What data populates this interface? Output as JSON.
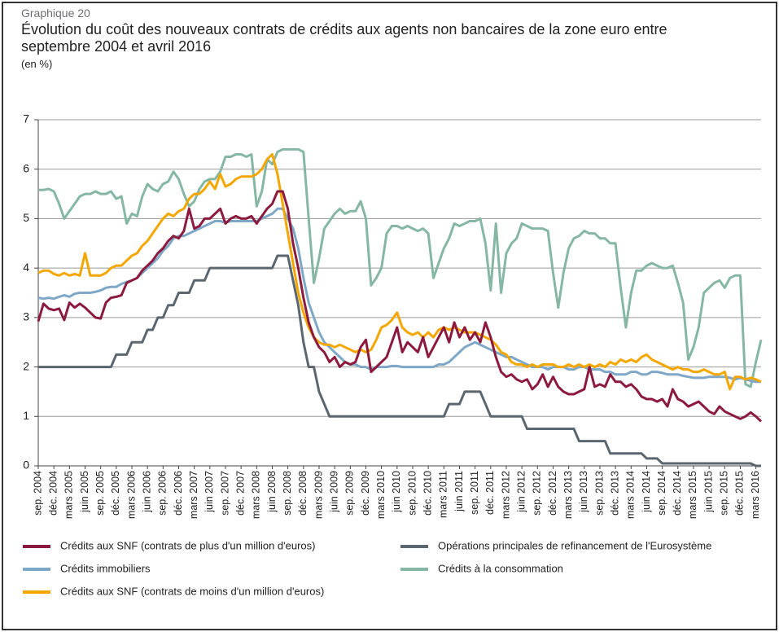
{
  "chart_data": {
    "type": "line",
    "kicker": "Graphique 20",
    "title": "Évolution du coût des nouveaux contrats de crédits aux agents non bancaires de la zone euro entre septembre 2004 et avril 2016",
    "y_label": "(en %)",
    "ylim": [
      0,
      7
    ],
    "yticks": [
      0,
      1,
      2,
      3,
      4,
      5,
      6,
      7
    ],
    "grid": true,
    "categories": [
      "sep. 2004",
      null,
      null,
      "déc. 2004",
      null,
      null,
      "mars 2005",
      null,
      null,
      "juin 2005",
      null,
      null,
      "sep. 2005",
      null,
      null,
      "déc. 2005",
      null,
      null,
      "mars 2006",
      null,
      null,
      "juin 2006",
      null,
      null,
      "sep. 2006",
      null,
      null,
      "déc. 2006",
      null,
      null,
      "mars 2007",
      null,
      null,
      "juin 2007",
      null,
      null,
      "sep. 2007",
      null,
      null,
      "déc. 2007",
      null,
      null,
      "mars 2008",
      null,
      null,
      "juin 2008",
      null,
      null,
      "sep. 2008",
      null,
      null,
      "déc. 2008",
      null,
      null,
      "mars 2009",
      null,
      null,
      "juin 2009",
      null,
      null,
      "sep. 2009",
      null,
      null,
      "déc. 2009",
      null,
      null,
      "mars 2010",
      null,
      null,
      "juin 2010",
      null,
      null,
      "sep. 2010",
      null,
      null,
      "déc. 2010",
      null,
      null,
      "mars 2011",
      null,
      null,
      "juin 2011",
      null,
      null,
      "sep. 2011",
      null,
      null,
      "déc. 2011",
      null,
      null,
      "mars 2012",
      null,
      null,
      "juin 2012",
      null,
      null,
      "sep. 2012",
      null,
      null,
      "déc. 2012",
      null,
      null,
      "mars 2013",
      null,
      null,
      "juin 2013",
      null,
      null,
      "sep. 2013",
      null,
      null,
      "déc. 2013",
      null,
      null,
      "mars 2014",
      null,
      null,
      "juin 2014",
      null,
      null,
      "sep. 2014",
      null,
      null,
      "déc. 2014",
      null,
      null,
      "mars 2015",
      null,
      null,
      "juin 2015",
      null,
      null,
      "sep. 2015",
      null,
      null,
      "déc. 2015",
      null,
      null,
      "mars 2016",
      null
    ],
    "series": [
      {
        "name": "Crédits aux SNF (contrats de plus d'un million d'euros)",
        "color": "#8b1a3e",
        "values": [
          2.92,
          3.28,
          3.18,
          3.15,
          3.18,
          2.95,
          3.3,
          3.2,
          3.28,
          3.2,
          3.1,
          3.0,
          2.98,
          3.3,
          3.4,
          3.42,
          3.45,
          3.7,
          3.75,
          3.8,
          3.95,
          4.05,
          4.15,
          4.3,
          4.4,
          4.55,
          4.65,
          4.6,
          4.75,
          5.2,
          4.8,
          4.85,
          5.0,
          5.0,
          5.1,
          5.2,
          4.9,
          5.0,
          5.05,
          5.0,
          5.0,
          5.05,
          4.9,
          5.05,
          5.2,
          5.3,
          5.55,
          5.55,
          5.2,
          4.5,
          4.0,
          3.4,
          2.9,
          2.6,
          2.4,
          2.3,
          2.1,
          2.2,
          2.0,
          2.1,
          2.05,
          2.1,
          2.4,
          2.55,
          1.9,
          2.0,
          2.1,
          2.2,
          2.5,
          2.8,
          2.3,
          2.5,
          2.4,
          2.3,
          2.6,
          2.2,
          2.4,
          2.6,
          2.8,
          2.5,
          2.9,
          2.6,
          2.8,
          2.55,
          2.7,
          2.5,
          2.9,
          2.6,
          2.2,
          1.9,
          1.8,
          1.85,
          1.75,
          1.7,
          1.75,
          1.55,
          1.65,
          1.85,
          1.6,
          1.8,
          1.6,
          1.5,
          1.45,
          1.45,
          1.5,
          1.55,
          2.0,
          1.6,
          1.65,
          1.6,
          1.85,
          1.7,
          1.7,
          1.6,
          1.65,
          1.55,
          1.4,
          1.35,
          1.35,
          1.3,
          1.35,
          1.2,
          1.55,
          1.35,
          1.3,
          1.2,
          1.25,
          1.3,
          1.2,
          1.1,
          1.05,
          1.2,
          1.1,
          1.05,
          1.0,
          0.95,
          1.0,
          1.08,
          1.0,
          0.9
        ]
      },
      {
        "name": "Opérations principales de refinancement de l'Eurosystème",
        "color": "#5b666f",
        "values": [
          2,
          2,
          2,
          2,
          2,
          2,
          2,
          2,
          2,
          2,
          2,
          2,
          2,
          2,
          2,
          2.25,
          2.25,
          2.25,
          2.5,
          2.5,
          2.5,
          2.75,
          2.75,
          3,
          3,
          3.25,
          3.25,
          3.5,
          3.5,
          3.5,
          3.75,
          3.75,
          3.75,
          4,
          4,
          4,
          4,
          4,
          4,
          4,
          4,
          4,
          4,
          4,
          4,
          4,
          4.25,
          4.25,
          4.25,
          3.75,
          3.25,
          2.5,
          2,
          2,
          1.5,
          1.25,
          1,
          1,
          1,
          1,
          1,
          1,
          1,
          1,
          1,
          1,
          1,
          1,
          1,
          1,
          1,
          1,
          1,
          1,
          1,
          1,
          1,
          1,
          1,
          1.25,
          1.25,
          1.25,
          1.5,
          1.5,
          1.5,
          1.5,
          1.25,
          1,
          1,
          1,
          1,
          1,
          1,
          1,
          0.75,
          0.75,
          0.75,
          0.75,
          0.75,
          0.75,
          0.75,
          0.75,
          0.75,
          0.75,
          0.5,
          0.5,
          0.5,
          0.5,
          0.5,
          0.5,
          0.25,
          0.25,
          0.25,
          0.25,
          0.25,
          0.25,
          0.25,
          0.15,
          0.15,
          0.15,
          0.05,
          0.05,
          0.05,
          0.05,
          0.05,
          0.05,
          0.05,
          0.05,
          0.05,
          0.05,
          0.05,
          0.05,
          0.05,
          0.05,
          0.05,
          0.05,
          0.05,
          0.05,
          0,
          0
        ]
      },
      {
        "name": "Crédits immobiliers",
        "color": "#7fa8c8",
        "values": [
          3.4,
          3.38,
          3.4,
          3.38,
          3.42,
          3.45,
          3.42,
          3.48,
          3.5,
          3.5,
          3.5,
          3.52,
          3.55,
          3.6,
          3.62,
          3.62,
          3.68,
          3.72,
          3.75,
          3.8,
          3.9,
          4.0,
          4.1,
          4.2,
          4.35,
          4.45,
          4.6,
          4.65,
          4.65,
          4.7,
          4.75,
          4.8,
          4.85,
          4.9,
          4.95,
          4.95,
          4.92,
          4.95,
          4.95,
          4.95,
          4.95,
          4.95,
          4.95,
          5.0,
          5.05,
          5.1,
          5.2,
          5.2,
          5.0,
          4.8,
          4.4,
          3.8,
          3.3,
          3.0,
          2.7,
          2.5,
          2.4,
          2.3,
          2.2,
          2.1,
          2.05,
          2.05,
          2.0,
          2.0,
          1.95,
          2.0,
          2.0,
          2.0,
          2.02,
          2.02,
          2.0,
          2.0,
          2.0,
          2.0,
          2.0,
          2.0,
          2.0,
          2.05,
          2.05,
          2.1,
          2.2,
          2.3,
          2.4,
          2.45,
          2.5,
          2.45,
          2.4,
          2.35,
          2.3,
          2.25,
          2.2,
          2.2,
          2.15,
          2.1,
          2.05,
          2.0,
          2.0,
          2.0,
          1.95,
          2.0,
          2.0,
          2.0,
          1.95,
          1.95,
          2.0,
          2.0,
          1.95,
          1.95,
          1.95,
          1.9,
          1.9,
          1.85,
          1.85,
          1.85,
          1.9,
          1.9,
          1.85,
          1.85,
          1.9,
          1.9,
          1.88,
          1.85,
          1.85,
          1.85,
          1.82,
          1.8,
          1.78,
          1.78,
          1.78,
          1.8,
          1.8,
          1.8,
          1.8,
          1.78,
          1.75,
          1.78,
          1.75,
          1.72,
          1.7,
          1.7
        ]
      },
      {
        "name": "Crédits à la consommation",
        "color": "#86b7a4",
        "values": [
          5.58,
          5.58,
          5.6,
          5.55,
          5.3,
          5.0,
          5.15,
          5.3,
          5.45,
          5.5,
          5.5,
          5.55,
          5.5,
          5.5,
          5.55,
          5.4,
          5.45,
          4.9,
          5.1,
          5.05,
          5.45,
          5.7,
          5.6,
          5.55,
          5.7,
          5.75,
          5.95,
          5.8,
          5.5,
          5.25,
          5.35,
          5.6,
          5.75,
          5.8,
          5.8,
          5.95,
          6.25,
          6.25,
          6.3,
          6.3,
          6.25,
          6.3,
          5.25,
          5.55,
          6.2,
          6.1,
          6.35,
          6.4,
          6.4,
          6.4,
          6.4,
          6.35,
          5.0,
          3.7,
          4.2,
          4.8,
          4.95,
          5.1,
          5.2,
          5.1,
          5.15,
          5.15,
          5.35,
          5.0,
          3.65,
          3.8,
          4.0,
          4.7,
          4.85,
          4.85,
          4.8,
          4.85,
          4.8,
          4.75,
          4.8,
          4.7,
          3.8,
          4.1,
          4.4,
          4.6,
          4.9,
          4.85,
          4.9,
          4.95,
          4.95,
          5.0,
          4.5,
          3.55,
          4.9,
          3.5,
          4.3,
          4.5,
          4.6,
          4.9,
          4.85,
          4.8,
          4.8,
          4.8,
          4.75,
          3.9,
          3.2,
          3.9,
          4.4,
          4.6,
          4.65,
          4.75,
          4.7,
          4.7,
          4.6,
          4.6,
          4.5,
          4.5,
          3.6,
          2.8,
          3.5,
          3.95,
          3.95,
          4.05,
          4.1,
          4.05,
          4.0,
          4.0,
          4.05,
          3.7,
          3.3,
          2.15,
          2.4,
          2.8,
          3.5,
          3.6,
          3.7,
          3.75,
          3.6,
          3.8,
          3.85,
          3.85,
          1.65,
          1.6,
          2.1,
          2.55
        ]
      },
      {
        "name": "Crédits aux SNF (contrats de moins d'un million d'euros)",
        "color": "#f4a700",
        "values": [
          3.9,
          3.95,
          3.95,
          3.88,
          3.85,
          3.9,
          3.85,
          3.88,
          3.85,
          4.3,
          3.85,
          3.85,
          3.85,
          3.9,
          4.0,
          4.05,
          4.05,
          4.15,
          4.25,
          4.3,
          4.45,
          4.55,
          4.7,
          4.85,
          5.0,
          5.1,
          5.05,
          5.15,
          5.2,
          5.4,
          5.5,
          5.5,
          5.6,
          5.75,
          5.6,
          5.9,
          5.65,
          5.7,
          5.8,
          5.85,
          5.85,
          5.85,
          5.9,
          6.0,
          6.2,
          6.3,
          5.9,
          5.3,
          4.7,
          4.1,
          3.5,
          3.1,
          2.8,
          2.6,
          2.5,
          2.45,
          2.45,
          2.4,
          2.45,
          2.4,
          2.35,
          2.3,
          2.35,
          2.3,
          2.35,
          2.55,
          2.8,
          2.85,
          2.95,
          3.1,
          2.8,
          2.7,
          2.65,
          2.7,
          2.6,
          2.7,
          2.6,
          2.75,
          2.8,
          2.75,
          2.8,
          2.75,
          2.7,
          2.7,
          2.7,
          2.65,
          2.6,
          2.55,
          2.45,
          2.3,
          2.25,
          2.1,
          2.05,
          2.05,
          2.0,
          2.05,
          2.0,
          2.05,
          2.05,
          2.05,
          2.0,
          2.0,
          2.05,
          2.0,
          2.05,
          2.0,
          2.05,
          2.0,
          2.05,
          2.0,
          2.1,
          2.05,
          2.15,
          2.1,
          2.15,
          2.1,
          2.2,
          2.25,
          2.15,
          2.1,
          2.05,
          2.0,
          1.95,
          2.0,
          1.95,
          1.95,
          1.9,
          1.9,
          1.95,
          1.9,
          1.85,
          1.85,
          1.9,
          1.55,
          1.8,
          1.8,
          1.75,
          1.78,
          1.75,
          1.7
        ]
      }
    ]
  }
}
